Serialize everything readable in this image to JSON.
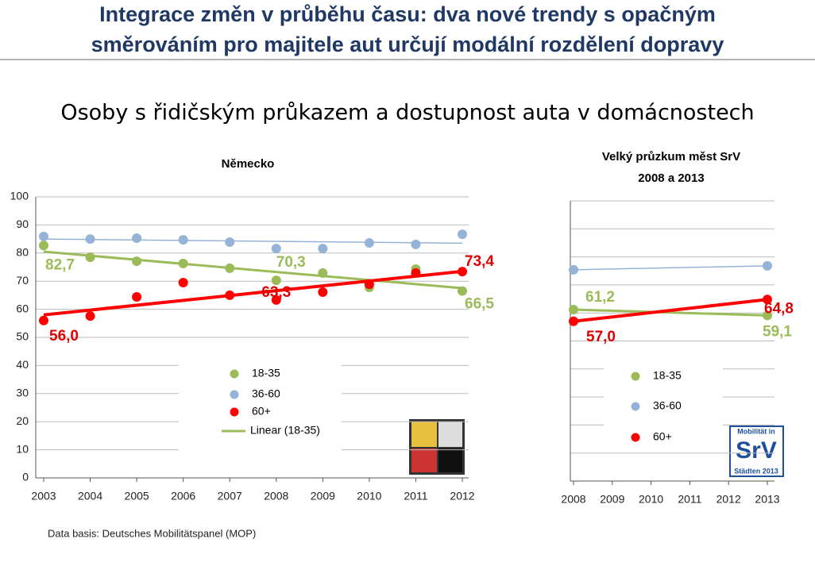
{
  "header": {
    "title": [
      "Integrace změn v průběhu času: dva nové trendy s opačným",
      "směrováním pro majitele aut určují modální rozdělení dopravy"
    ]
  },
  "subtitle": "Osoby s řidičským průkazem a dostupnost auta v domácnostech",
  "chart_data": [
    {
      "type": "scatter",
      "title": [
        "Německo"
      ],
      "x": [
        2003,
        2004,
        2005,
        2006,
        2007,
        2008,
        2009,
        2010,
        2011,
        2012
      ],
      "xlim": [
        2003,
        2012
      ],
      "xticks": [
        2003,
        2004,
        2005,
        2006,
        2007,
        2008,
        2009,
        2010,
        2011,
        2012
      ],
      "ylim": [
        0,
        100
      ],
      "yticks": [
        0,
        10,
        20,
        30,
        40,
        50,
        60,
        70,
        80,
        90,
        100
      ],
      "grid": true,
      "series": [
        {
          "name": "18-35",
          "color": "#9bbb59",
          "values": [
            82.7,
            78.5,
            77.1,
            76.3,
            74.6,
            70.3,
            72.9,
            67.8,
            74.3,
            66.5
          ],
          "value_labels": [
            "82,7",
            null,
            null,
            null,
            null,
            "70,3",
            null,
            null,
            null,
            "66,5"
          ]
        },
        {
          "name": "36-60",
          "color": "#95b3d7",
          "values": [
            85.9,
            85.0,
            85.3,
            84.7,
            83.9,
            81.6,
            81.6,
            83.6,
            83.1,
            86.7
          ]
        },
        {
          "name": "60+",
          "color": "#ff0000",
          "values": [
            56.0,
            57.6,
            64.4,
            69.5,
            65.0,
            63.3,
            66.1,
            68.9,
            72.9,
            73.4
          ],
          "value_labels": [
            "56,0",
            null,
            null,
            null,
            null,
            "63,3",
            null,
            null,
            null,
            "73,4"
          ]
        }
      ],
      "trend_lines": [
        {
          "name": "Linear (18-35)",
          "color": "#9bbb59",
          "x": [
            2003,
            2012
          ],
          "values": [
            80.5,
            67.5
          ]
        },
        {
          "color": "#95b3d7",
          "x": [
            2003,
            2012
          ],
          "values": [
            85.0,
            83.5
          ]
        },
        {
          "color": "#ff0000",
          "x": [
            2003,
            2012
          ],
          "values": [
            58.0,
            73.5
          ]
        }
      ]
    },
    {
      "type": "line",
      "title": [
        "Velký průzkum měst SrV",
        "2008 a 2013"
      ],
      "x": [
        2008,
        2013
      ],
      "xlim": [
        2008,
        2013
      ],
      "xticks": [
        2008,
        2009,
        2010,
        2011,
        2012,
        2013
      ],
      "ylim": [
        0,
        100
      ],
      "yticks": [
        0,
        10,
        20,
        30,
        40,
        50,
        60,
        70,
        80,
        90,
        100
      ],
      "ytick_labels": false,
      "grid": true,
      "series": [
        {
          "name": "18-35",
          "color": "#9bbb59",
          "values": [
            61.2,
            59.1
          ],
          "value_labels": [
            "61,2",
            "59,1"
          ]
        },
        {
          "name": "36-60",
          "color": "#95b3d7",
          "values": [
            75.4,
            76.8
          ]
        },
        {
          "name": "60+",
          "color": "#ff0000",
          "values": [
            57.0,
            64.8
          ],
          "value_labels": [
            "57,0",
            "64,8"
          ]
        }
      ]
    }
  ],
  "logo": {
    "line1": "Mobilität in",
    "line2": "SrV",
    "line3": "Städten 2013"
  },
  "footer": "Data basis: Deutsches Mobilitätspanel (MOP)"
}
